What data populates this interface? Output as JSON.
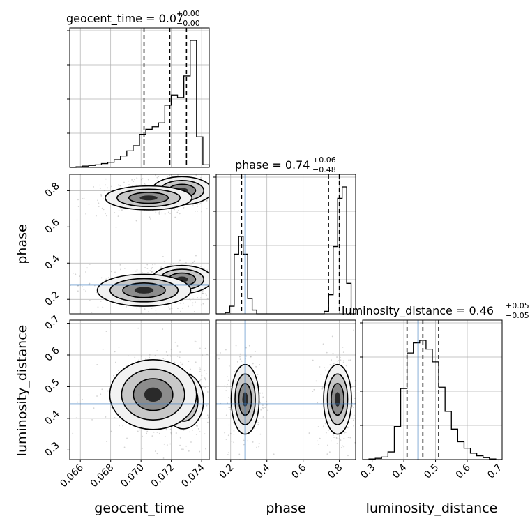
{
  "chart_data": {
    "type": "corner",
    "grid": true,
    "parameters": [
      "geocent_time",
      "phase",
      "luminosity_distance"
    ],
    "axes_labels": {
      "x": [
        "geocent_time",
        "phase",
        "luminosity_distance"
      ],
      "y": [
        "phase",
        "luminosity_distance"
      ]
    },
    "titles": [
      {
        "name": "geocent_time",
        "median": "0.07",
        "plus": "+0.00",
        "minus": "−0.00"
      },
      {
        "name": "phase",
        "median": "0.74",
        "plus": "+0.06",
        "minus": "−0.48"
      },
      {
        "name": "luminosity_distance",
        "median": "0.46",
        "plus": "+0.05",
        "minus": "−0.05"
      }
    ],
    "ranges": {
      "geocent_time": [
        0.0653,
        0.0745
      ],
      "phase": [
        0.12,
        0.89
      ],
      "luminosity_distance": [
        0.27,
        0.71
      ]
    },
    "ticks": {
      "geocent_time": [
        "0.066",
        "0.068",
        "0.070",
        "0.072",
        "0.074"
      ],
      "phase": [
        "0.2",
        "0.4",
        "0.6",
        "0.8"
      ],
      "phase_y": [
        "0.2",
        "0.4",
        "0.6",
        "0.8"
      ],
      "luminosity_distance": [
        "0.3",
        "0.4",
        "0.5",
        "0.6",
        "0.7"
      ]
    },
    "truths": {
      "geocent_time": null,
      "phase": 0.28,
      "luminosity_distance": 0.445
    },
    "quantiles": {
      "geocent_time": [
        0.0702,
        0.0719,
        0.073
      ],
      "phase": [
        0.26,
        0.74,
        0.8
      ],
      "luminosity_distance": [
        0.41,
        0.46,
        0.51
      ]
    },
    "histograms": {
      "geocent_time": {
        "range": [
          0.0653,
          0.0745
        ],
        "counts": [
          0.0,
          0.005,
          0.01,
          0.015,
          0.02,
          0.03,
          0.04,
          0.06,
          0.09,
          0.13,
          0.17,
          0.26,
          0.3,
          0.32,
          0.35,
          0.49,
          0.57,
          0.55,
          0.72,
          1.0,
          0.24,
          0.02
        ]
      },
      "phase": {
        "range": [
          0.12,
          0.89
        ],
        "counts": [
          0.0,
          0.0,
          0.01,
          0.06,
          0.47,
          0.61,
          0.47,
          0.12,
          0.03,
          0.0,
          0.0,
          0.0,
          0.0,
          0.0,
          0.0,
          0.0,
          0.0,
          0.0,
          0.0,
          0.0,
          0.0,
          0.0,
          0.0,
          0.0,
          0.02,
          0.15,
          0.53,
          0.91,
          1.0,
          0.24,
          0.0
        ]
      },
      "luminosity_distance": {
        "range": [
          0.27,
          0.71
        ],
        "counts": [
          0.0,
          0.005,
          0.01,
          0.02,
          0.06,
          0.26,
          0.56,
          0.84,
          0.92,
          0.94,
          0.87,
          0.77,
          0.57,
          0.38,
          0.24,
          0.14,
          0.09,
          0.05,
          0.03,
          0.015,
          0.005,
          0.0
        ]
      }
    },
    "density_clusters": {
      "geocent_time_vs_phase": [
        {
          "cx": 0.0727,
          "cy": 0.8,
          "sx": 0.0009,
          "sy": 0.035
        },
        {
          "cx": 0.0705,
          "cy": 0.76,
          "sx": 0.0013,
          "sy": 0.03
        },
        {
          "cx": 0.0727,
          "cy": 0.31,
          "sx": 0.0009,
          "sy": 0.035
        },
        {
          "cx": 0.0702,
          "cy": 0.25,
          "sx": 0.0014,
          "sy": 0.04
        }
      ],
      "geocent_time_vs_luminosity_distance": [
        {
          "cx": 0.0728,
          "cy": 0.455,
          "sx": 0.0006,
          "sy": 0.04
        },
        {
          "cx": 0.0708,
          "cy": 0.475,
          "sx": 0.0013,
          "sy": 0.05
        }
      ],
      "phase_vs_luminosity_distance": [
        {
          "cx": 0.28,
          "cy": 0.46,
          "sx": 0.035,
          "sy": 0.05
        },
        {
          "cx": 0.79,
          "cy": 0.46,
          "sx": 0.035,
          "sy": 0.05
        }
      ]
    },
    "colors": {
      "truth": "#3b7bbf",
      "hist": "#000000",
      "grid": "#b0b0b0",
      "samples": "#808080"
    }
  }
}
